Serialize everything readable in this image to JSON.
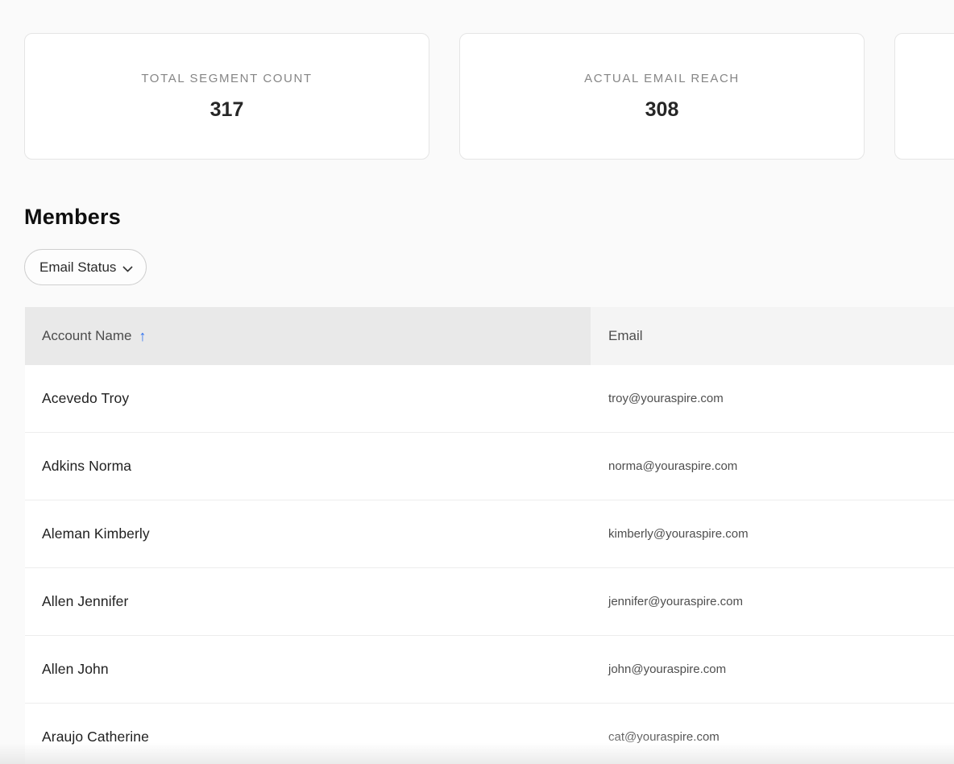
{
  "stat_cards": [
    {
      "label": "TOTAL SEGMENT COUNT",
      "value": "317"
    },
    {
      "label": "ACTUAL EMAIL REACH",
      "value": "308"
    },
    {
      "label": "",
      "value": ""
    }
  ],
  "members": {
    "title": "Members",
    "filter": {
      "label": "Email Status"
    }
  },
  "table": {
    "columns": [
      {
        "label": "Account Name",
        "sort": "ascending",
        "sort_icon": "↑"
      },
      {
        "label": "Email",
        "sort": "none",
        "sort_icon": ""
      }
    ],
    "rows": [
      {
        "name": "Acevedo Troy",
        "email": "troy@youraspire.com"
      },
      {
        "name": "Adkins Norma",
        "email": "norma@youraspire.com"
      },
      {
        "name": "Aleman Kimberly",
        "email": "kimberly@youraspire.com"
      },
      {
        "name": "Allen Jennifer",
        "email": "jennifer@youraspire.com"
      },
      {
        "name": "Allen John",
        "email": "john@youraspire.com"
      },
      {
        "name": "Araujo Catherine",
        "email": "cat@youraspire.com"
      }
    ]
  },
  "colors": {
    "page_background": "#fafafa",
    "sorted_header_bg": "#e9e9e9",
    "header_bg": "#f4f4f4",
    "sort_arrow": "#2b6ff0"
  }
}
